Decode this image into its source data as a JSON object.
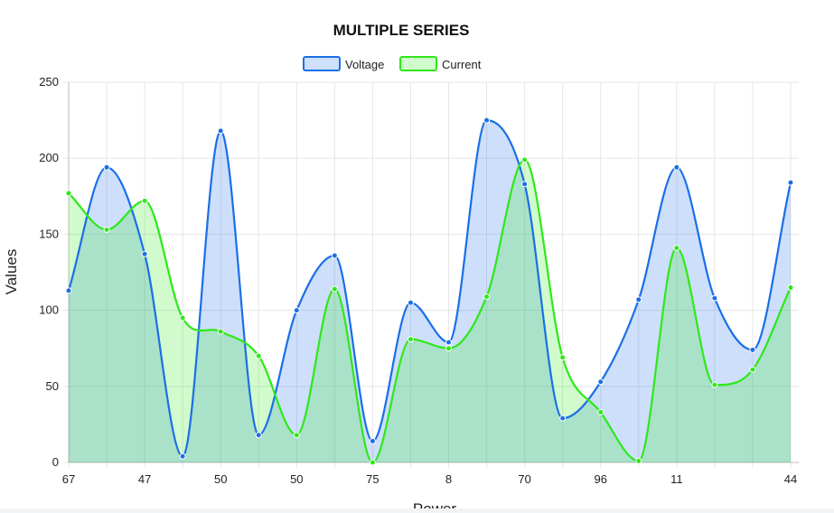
{
  "chart_data": {
    "type": "area",
    "title": "MULTIPLE SERIES",
    "xlabel": "Power",
    "ylabel": "Values",
    "ylim": [
      0,
      250
    ],
    "yticks": [
      0,
      50,
      100,
      150,
      200,
      250
    ],
    "categories": [
      "67",
      "",
      "47",
      "",
      "50",
      "",
      "50",
      "",
      "75",
      "",
      "8",
      "",
      "70",
      "",
      "96",
      "",
      "11",
      "",
      "",
      "44"
    ],
    "legend_position": "top-center",
    "grid": true,
    "series": [
      {
        "name": "Voltage",
        "color": "#1a6fe8",
        "fill": "rgba(26,111,232,0.22)",
        "values": [
          113,
          194,
          137,
          4,
          218,
          18,
          100,
          136,
          14,
          105,
          79,
          225,
          183,
          29,
          53,
          107,
          194,
          108,
          74,
          184
        ]
      },
      {
        "name": "Current",
        "color": "#2fe81a",
        "fill": "rgba(47,232,26,0.22)",
        "values": [
          177,
          153,
          172,
          95,
          86,
          70,
          18,
          114,
          0,
          81,
          75,
          109,
          199,
          69,
          33,
          1,
          141,
          51,
          61,
          115
        ]
      }
    ]
  }
}
